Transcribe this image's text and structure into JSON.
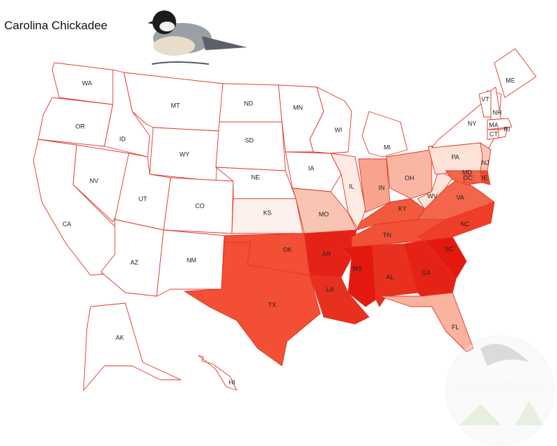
{
  "title": "Carolina Chickadee",
  "watermark": "OUTLIFE EXPERT",
  "states": [
    {
      "label": "WA",
      "color": "#ffffff"
    },
    {
      "label": "OR",
      "color": "#ffffff"
    },
    {
      "label": "CA",
      "color": "#ffffff"
    },
    {
      "label": "NV",
      "color": "#ffffff"
    },
    {
      "label": "ID",
      "color": "#ffffff"
    },
    {
      "label": "MT",
      "color": "#ffffff"
    },
    {
      "label": "WY",
      "color": "#ffffff"
    },
    {
      "label": "UT",
      "color": "#ffffff"
    },
    {
      "label": "CO",
      "color": "#ffffff"
    },
    {
      "label": "AZ",
      "color": "#ffffff"
    },
    {
      "label": "NM",
      "color": "#ffffff"
    },
    {
      "label": "ND",
      "color": "#ffffff"
    },
    {
      "label": "SD",
      "color": "#ffffff"
    },
    {
      "label": "NE",
      "color": "#ffffff"
    },
    {
      "label": "KS",
      "color": "#fdf1ed"
    },
    {
      "label": "OK",
      "color": "#f24f34"
    },
    {
      "label": "TX",
      "color": "#f24f34"
    },
    {
      "label": "MN",
      "color": "#ffffff"
    },
    {
      "label": "IA",
      "color": "#ffffff"
    },
    {
      "label": "MO",
      "color": "#f9c4b2"
    },
    {
      "label": "AR",
      "color": "#e52216"
    },
    {
      "label": "LA",
      "color": "#e8301f"
    },
    {
      "label": "WI",
      "color": "#ffffff"
    },
    {
      "label": "IL",
      "color": "#fdeae3"
    },
    {
      "label": "MI",
      "color": "#ffffff"
    },
    {
      "label": "IN",
      "color": "#f8a48c"
    },
    {
      "label": "OH",
      "color": "#f9b7a3"
    },
    {
      "label": "KY",
      "color": "#f15a3c"
    },
    {
      "label": "TN",
      "color": "#f15236"
    },
    {
      "label": "MS",
      "color": "#e3190f"
    },
    {
      "label": "AL",
      "color": "#e8301f"
    },
    {
      "label": "GA",
      "color": "#e52216"
    },
    {
      "label": "FL",
      "color": "#f9b29c"
    },
    {
      "label": "SC",
      "color": "#e3190f"
    },
    {
      "label": "NC",
      "color": "#ef3e28"
    },
    {
      "label": "VA",
      "color": "#f3664a"
    },
    {
      "label": "WV",
      "color": "#fde2d8"
    },
    {
      "label": "PA",
      "color": "#fde2d8"
    },
    {
      "label": "NY",
      "color": "#ffffff"
    },
    {
      "label": "ME",
      "color": "#ffffff"
    },
    {
      "label": "VT",
      "color": "#ffffff"
    },
    {
      "label": "NH",
      "color": "#ffffff"
    },
    {
      "label": "MA",
      "color": "#ffffff"
    },
    {
      "label": "CT",
      "color": "#ffffff"
    },
    {
      "label": "RI",
      "color": "#ffffff"
    },
    {
      "label": "NJ",
      "color": "#fbc8b6"
    },
    {
      "label": "DE",
      "color": "#ef4a31"
    },
    {
      "label": "MD",
      "color": "#f3664a"
    },
    {
      "label": "DC",
      "color": "#f3664a"
    },
    {
      "label": "AK",
      "color": "#ffffff"
    },
    {
      "label": "HI",
      "color": "#ffffff"
    }
  ]
}
